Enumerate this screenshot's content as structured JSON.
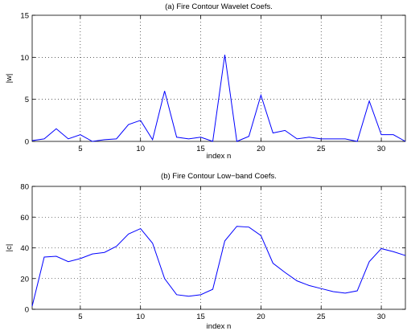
{
  "chart_data": [
    {
      "type": "line",
      "title": "(a) Fire Contour Wavelet Coefs.",
      "xlabel": "index n",
      "ylabel": "|w|",
      "xlim": [
        1,
        32
      ],
      "ylim": [
        0,
        15
      ],
      "xticks": [
        5,
        10,
        15,
        20,
        25,
        30
      ],
      "yticks": [
        0,
        5,
        10,
        15
      ],
      "grid": true,
      "line_color": "#0000ff",
      "x": [
        1,
        2,
        3,
        4,
        5,
        6,
        7,
        8,
        9,
        10,
        11,
        12,
        13,
        14,
        15,
        16,
        17,
        18,
        19,
        20,
        21,
        22,
        23,
        24,
        25,
        26,
        27,
        28,
        29,
        30,
        31,
        32
      ],
      "series": [
        {
          "values": [
            0.1,
            0.3,
            1.5,
            0.3,
            0.8,
            0.0,
            0.2,
            0.3,
            2.0,
            2.5,
            0.2,
            6.0,
            0.5,
            0.3,
            0.5,
            0.0,
            10.3,
            0.0,
            0.6,
            5.5,
            1.0,
            1.3,
            0.3,
            0.5,
            0.3,
            0.3,
            0.3,
            0.0,
            4.8,
            0.8,
            0.8,
            0.0
          ]
        }
      ]
    },
    {
      "type": "line",
      "title": "(b) Fire Contour Low−band Coefs.",
      "xlabel": "index n",
      "ylabel": "|c|",
      "xlim": [
        1,
        32
      ],
      "ylim": [
        0,
        80
      ],
      "xticks": [
        5,
        10,
        15,
        20,
        25,
        30
      ],
      "yticks": [
        0,
        20,
        40,
        60,
        80
      ],
      "grid": true,
      "line_color": "#0000ff",
      "x": [
        1,
        2,
        3,
        4,
        5,
        6,
        7,
        8,
        9,
        10,
        11,
        12,
        13,
        14,
        15,
        16,
        17,
        18,
        19,
        20,
        21,
        22,
        23,
        24,
        25,
        26,
        27,
        28,
        29,
        30,
        31,
        32
      ],
      "series": [
        {
          "values": [
            2,
            34,
            34.5,
            31,
            33,
            36,
            37,
            41,
            49,
            52.5,
            43,
            20,
            9.5,
            8.5,
            9.5,
            13,
            44.5,
            54,
            53.5,
            48,
            30,
            24,
            18.5,
            15.5,
            13.5,
            11.5,
            10.5,
            12,
            31,
            39.5,
            37.5,
            35
          ]
        }
      ]
    }
  ]
}
